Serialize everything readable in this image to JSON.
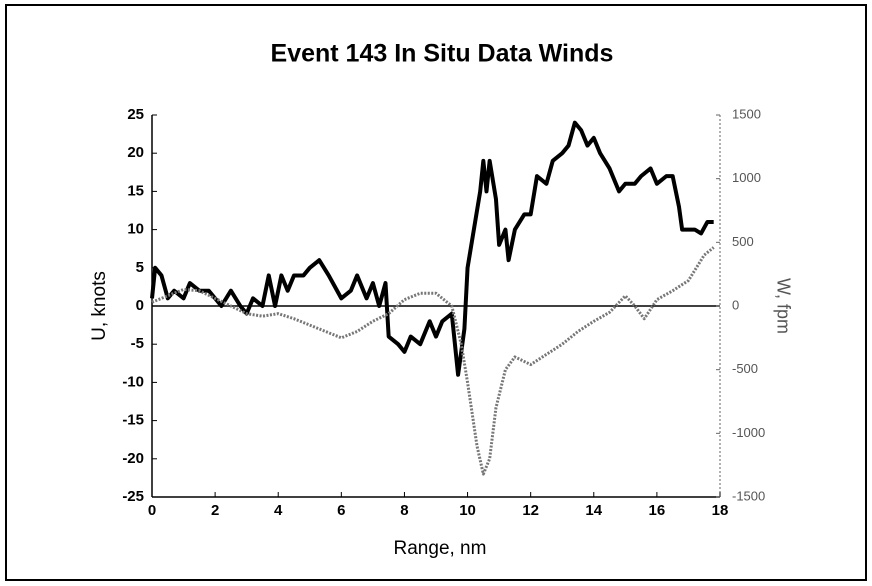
{
  "chart_data": {
    "type": "line",
    "title": "Event 143 In Situ Data Winds",
    "x_label": "Range, nm",
    "y_label": "U, knots",
    "y2_label": "W, fpm",
    "xlim": [
      0,
      18
    ],
    "xticks": [
      0,
      2,
      4,
      6,
      8,
      10,
      12,
      14,
      16,
      18
    ],
    "ylim": [
      -25,
      25
    ],
    "yticks": [
      -25,
      -20,
      -15,
      -10,
      -5,
      0,
      5,
      10,
      15,
      20,
      25
    ],
    "y2lim": [
      -1500,
      1500
    ],
    "y2ticks": [
      -1500,
      -1000,
      -500,
      0,
      500,
      1000,
      1500
    ],
    "series": [
      {
        "color": "#000000",
        "axis": "y",
        "x": [
          0,
          0.1,
          0.3,
          0.5,
          0.7,
          1,
          1.2,
          1.5,
          1.8,
          2,
          2.2,
          2.5,
          2.8,
          3,
          3.2,
          3.5,
          3.7,
          3.9,
          4.1,
          4.3,
          4.5,
          4.8,
          5,
          5.3,
          5.6,
          6,
          6.3,
          6.5,
          6.8,
          7,
          7.2,
          7.4,
          7.5,
          7.8,
          8,
          8.2,
          8.5,
          8.8,
          9,
          9.2,
          9.5,
          9.7,
          9.9,
          10,
          10.2,
          10.4,
          10.5,
          10.6,
          10.7,
          10.9,
          11,
          11.2,
          11.3,
          11.5,
          11.8,
          12,
          12.2,
          12.5,
          12.7,
          13,
          13.2,
          13.4,
          13.6,
          13.8,
          14,
          14.2,
          14.5,
          14.8,
          15,
          15.3,
          15.5,
          15.8,
          16,
          16.3,
          16.5,
          16.7,
          16.8,
          17,
          17.2,
          17.4,
          17.6,
          17.8
        ],
        "values": [
          1,
          5,
          4,
          1,
          2,
          1,
          3,
          2,
          2,
          1,
          0,
          2,
          0,
          -1,
          1,
          0,
          4,
          0,
          4,
          2,
          4,
          4,
          5,
          6,
          4,
          1,
          2,
          4,
          1,
          3,
          0,
          3,
          -4,
          -5,
          -6,
          -4,
          -5,
          -2,
          -4,
          -2,
          -1,
          -9,
          -3,
          5,
          10,
          15,
          19,
          15,
          19,
          14,
          8,
          10,
          6,
          10,
          12,
          12,
          17,
          16,
          19,
          20,
          21,
          24,
          23,
          21,
          22,
          20,
          18,
          15,
          16,
          16,
          17,
          18,
          16,
          17,
          17,
          13,
          10,
          10,
          10,
          9.5,
          11,
          11
        ]
      },
      {
        "color": "#777777",
        "axis": "y2",
        "x": [
          0,
          0.5,
          1,
          1.5,
          2,
          2.5,
          3,
          3.5,
          4,
          4.5,
          5,
          5.5,
          6,
          6.5,
          7,
          7.5,
          8,
          8.5,
          9,
          9.5,
          9.8,
          10,
          10.3,
          10.5,
          10.7,
          10.9,
          11.2,
          11.5,
          12,
          12.5,
          13,
          13.5,
          14,
          14.5,
          15,
          15.3,
          15.6,
          16,
          16.5,
          17,
          17.5,
          17.8
        ],
        "values": [
          30,
          80,
          130,
          120,
          60,
          0,
          -60,
          -80,
          -60,
          -100,
          -150,
          -200,
          -250,
          -200,
          -120,
          -60,
          50,
          100,
          100,
          0,
          -300,
          -600,
          -1100,
          -1320,
          -1200,
          -800,
          -500,
          -400,
          -460,
          -380,
          -300,
          -200,
          -120,
          -50,
          80,
          0,
          -100,
          50,
          120,
          200,
          400,
          460
        ]
      }
    ]
  }
}
